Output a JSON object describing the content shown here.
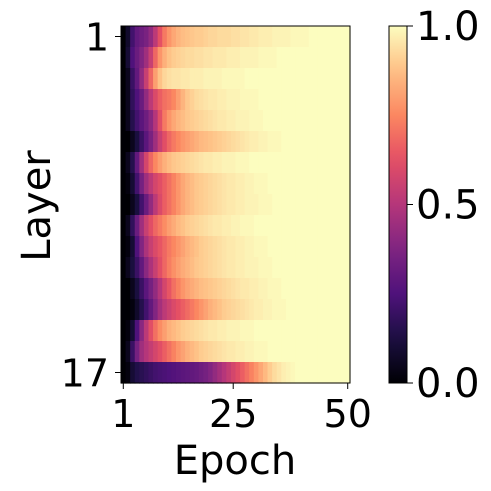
{
  "chart_data": {
    "type": "heatmap",
    "title": "",
    "xlabel": "Epoch",
    "ylabel": "Layer",
    "x_range": [
      1,
      50
    ],
    "y_range": [
      1,
      17
    ],
    "x_ticks": [
      "1",
      "25",
      "50"
    ],
    "y_ticks": [
      "1",
      "17"
    ],
    "colormap": "magma",
    "colorbar": {
      "range": [
        0.0,
        1.0
      ],
      "ticks": [
        "0.0",
        "0.5",
        "1.0"
      ]
    },
    "rows": [
      {
        "layer": 1,
        "values": [
          0.0,
          0.08,
          0.22,
          0.3,
          0.33,
          0.36,
          0.42,
          0.52,
          0.63,
          0.72,
          0.78,
          0.82,
          0.85,
          0.87,
          0.88,
          0.89,
          0.9,
          0.9,
          0.91,
          0.92,
          0.92,
          0.93,
          0.93,
          0.93,
          0.94,
          0.94,
          0.95,
          0.95,
          0.96,
          0.96,
          0.97,
          0.97,
          0.97,
          0.98,
          0.98,
          0.98,
          0.98,
          0.99,
          0.99,
          0.99,
          0.99,
          1.0,
          1.0,
          1.0,
          1.0,
          1.0,
          1.0,
          1.0,
          1.0,
          1.0
        ]
      },
      {
        "layer": 2,
        "values": [
          0.0,
          0.1,
          0.25,
          0.32,
          0.38,
          0.45,
          0.55,
          0.68,
          0.78,
          0.84,
          0.88,
          0.9,
          0.91,
          0.92,
          0.93,
          0.93,
          0.94,
          0.94,
          0.95,
          0.95,
          0.96,
          0.96,
          0.96,
          0.97,
          0.97,
          0.97,
          0.98,
          0.98,
          0.98,
          0.98,
          0.99,
          0.99,
          0.99,
          0.99,
          1.0,
          1.0,
          1.0,
          1.0,
          1.0,
          1.0,
          1.0,
          1.0,
          1.0,
          1.0,
          1.0,
          1.0,
          1.0,
          1.0,
          1.0,
          1.0
        ]
      },
      {
        "layer": 3,
        "values": [
          0.0,
          0.05,
          0.2,
          0.3,
          0.42,
          0.55,
          0.68,
          0.8,
          0.88,
          0.92,
          0.94,
          0.95,
          0.95,
          0.96,
          0.96,
          0.97,
          0.97,
          0.97,
          0.98,
          0.98,
          0.98,
          0.98,
          0.99,
          0.99,
          0.99,
          0.99,
          0.99,
          1.0,
          1.0,
          1.0,
          1.0,
          1.0,
          1.0,
          1.0,
          1.0,
          1.0,
          1.0,
          1.0,
          1.0,
          1.0,
          1.0,
          1.0,
          1.0,
          1.0,
          1.0,
          1.0,
          1.0,
          1.0,
          1.0,
          1.0
        ]
      },
      {
        "layer": 4,
        "values": [
          0.0,
          0.05,
          0.18,
          0.25,
          0.32,
          0.42,
          0.52,
          0.6,
          0.66,
          0.7,
          0.72,
          0.75,
          0.8,
          0.85,
          0.89,
          0.91,
          0.93,
          0.94,
          0.95,
          0.96,
          0.96,
          0.97,
          0.97,
          0.98,
          0.98,
          0.98,
          0.99,
          0.99,
          0.99,
          0.99,
          1.0,
          1.0,
          1.0,
          1.0,
          1.0,
          1.0,
          1.0,
          1.0,
          1.0,
          1.0,
          1.0,
          1.0,
          1.0,
          1.0,
          1.0,
          1.0,
          1.0,
          1.0,
          1.0,
          1.0
        ]
      },
      {
        "layer": 5,
        "values": [
          0.0,
          0.05,
          0.15,
          0.22,
          0.28,
          0.33,
          0.4,
          0.5,
          0.62,
          0.72,
          0.78,
          0.82,
          0.85,
          0.87,
          0.89,
          0.9,
          0.91,
          0.92,
          0.93,
          0.94,
          0.95,
          0.96,
          0.96,
          0.97,
          0.97,
          0.98,
          0.98,
          0.98,
          0.99,
          0.99,
          0.99,
          1.0,
          1.0,
          1.0,
          1.0,
          1.0,
          1.0,
          1.0,
          1.0,
          1.0,
          1.0,
          1.0,
          1.0,
          1.0,
          1.0,
          1.0,
          1.0,
          1.0,
          1.0,
          1.0
        ]
      },
      {
        "layer": 6,
        "values": [
          0.0,
          0.0,
          0.05,
          0.12,
          0.2,
          0.28,
          0.36,
          0.45,
          0.55,
          0.62,
          0.68,
          0.72,
          0.75,
          0.78,
          0.8,
          0.82,
          0.84,
          0.86,
          0.87,
          0.88,
          0.89,
          0.9,
          0.91,
          0.92,
          0.93,
          0.94,
          0.95,
          0.96,
          0.97,
          0.97,
          0.98,
          0.98,
          0.99,
          0.99,
          0.99,
          1.0,
          1.0,
          1.0,
          1.0,
          1.0,
          1.0,
          1.0,
          1.0,
          1.0,
          1.0,
          1.0,
          1.0,
          1.0,
          1.0,
          1.0
        ]
      },
      {
        "layer": 7,
        "values": [
          0.0,
          0.05,
          0.15,
          0.3,
          0.45,
          0.58,
          0.68,
          0.75,
          0.8,
          0.84,
          0.87,
          0.89,
          0.9,
          0.91,
          0.92,
          0.93,
          0.94,
          0.95,
          0.96,
          0.96,
          0.97,
          0.97,
          0.98,
          0.98,
          0.98,
          0.99,
          0.99,
          0.99,
          1.0,
          1.0,
          1.0,
          1.0,
          1.0,
          1.0,
          1.0,
          1.0,
          1.0,
          1.0,
          1.0,
          1.0,
          1.0,
          1.0,
          1.0,
          1.0,
          1.0,
          1.0,
          1.0,
          1.0,
          1.0,
          1.0
        ]
      },
      {
        "layer": 8,
        "values": [
          0.0,
          0.02,
          0.1,
          0.22,
          0.35,
          0.45,
          0.52,
          0.58,
          0.62,
          0.66,
          0.7,
          0.74,
          0.78,
          0.82,
          0.85,
          0.87,
          0.89,
          0.9,
          0.91,
          0.92,
          0.93,
          0.94,
          0.95,
          0.96,
          0.96,
          0.97,
          0.97,
          0.98,
          0.98,
          0.99,
          0.99,
          0.99,
          1.0,
          1.0,
          1.0,
          1.0,
          1.0,
          1.0,
          1.0,
          1.0,
          1.0,
          1.0,
          1.0,
          1.0,
          1.0,
          1.0,
          1.0,
          1.0,
          1.0,
          1.0
        ]
      },
      {
        "layer": 9,
        "values": [
          0.0,
          0.0,
          0.05,
          0.12,
          0.22,
          0.32,
          0.42,
          0.52,
          0.6,
          0.66,
          0.7,
          0.74,
          0.78,
          0.82,
          0.85,
          0.87,
          0.89,
          0.9,
          0.91,
          0.92,
          0.93,
          0.94,
          0.95,
          0.96,
          0.96,
          0.97,
          0.97,
          0.98,
          0.98,
          0.98,
          0.99,
          0.99,
          0.99,
          1.0,
          1.0,
          1.0,
          1.0,
          1.0,
          1.0,
          1.0,
          1.0,
          1.0,
          1.0,
          1.0,
          1.0,
          1.0,
          1.0,
          1.0,
          1.0,
          1.0
        ]
      },
      {
        "layer": 10,
        "values": [
          0.0,
          0.05,
          0.18,
          0.32,
          0.45,
          0.55,
          0.62,
          0.68,
          0.72,
          0.76,
          0.8,
          0.83,
          0.86,
          0.88,
          0.9,
          0.91,
          0.92,
          0.93,
          0.94,
          0.95,
          0.96,
          0.96,
          0.97,
          0.97,
          0.98,
          0.98,
          0.99,
          0.99,
          0.99,
          1.0,
          1.0,
          1.0,
          1.0,
          1.0,
          1.0,
          1.0,
          1.0,
          1.0,
          1.0,
          1.0,
          1.0,
          1.0,
          1.0,
          1.0,
          1.0,
          1.0,
          1.0,
          1.0,
          1.0,
          1.0
        ]
      },
      {
        "layer": 11,
        "values": [
          0.0,
          0.02,
          0.1,
          0.25,
          0.38,
          0.48,
          0.55,
          0.6,
          0.64,
          0.68,
          0.72,
          0.75,
          0.78,
          0.81,
          0.84,
          0.86,
          0.88,
          0.9,
          0.91,
          0.92,
          0.93,
          0.94,
          0.95,
          0.96,
          0.96,
          0.97,
          0.97,
          0.98,
          0.98,
          0.99,
          0.99,
          0.99,
          1.0,
          1.0,
          1.0,
          1.0,
          1.0,
          1.0,
          1.0,
          1.0,
          1.0,
          1.0,
          1.0,
          1.0,
          1.0,
          1.0,
          1.0,
          1.0,
          1.0,
          1.0
        ]
      },
      {
        "layer": 12,
        "values": [
          0.0,
          0.05,
          0.12,
          0.2,
          0.3,
          0.4,
          0.48,
          0.55,
          0.62,
          0.68,
          0.73,
          0.77,
          0.8,
          0.83,
          0.85,
          0.87,
          0.89,
          0.9,
          0.91,
          0.92,
          0.93,
          0.94,
          0.95,
          0.96,
          0.96,
          0.97,
          0.97,
          0.98,
          0.98,
          0.98,
          0.99,
          0.99,
          0.99,
          1.0,
          1.0,
          1.0,
          1.0,
          1.0,
          1.0,
          1.0,
          1.0,
          1.0,
          1.0,
          1.0,
          1.0,
          1.0,
          1.0,
          1.0,
          1.0,
          1.0
        ]
      },
      {
        "layer": 13,
        "values": [
          0.0,
          0.0,
          0.05,
          0.12,
          0.2,
          0.28,
          0.35,
          0.42,
          0.5,
          0.58,
          0.64,
          0.7,
          0.74,
          0.78,
          0.81,
          0.83,
          0.85,
          0.87,
          0.88,
          0.89,
          0.9,
          0.91,
          0.92,
          0.93,
          0.94,
          0.95,
          0.96,
          0.96,
          0.97,
          0.97,
          0.98,
          0.98,
          0.99,
          0.99,
          0.99,
          1.0,
          1.0,
          1.0,
          1.0,
          1.0,
          1.0,
          1.0,
          1.0,
          1.0,
          1.0,
          1.0,
          1.0,
          1.0,
          1.0,
          1.0
        ]
      },
      {
        "layer": 14,
        "values": [
          0.0,
          0.0,
          0.02,
          0.08,
          0.15,
          0.22,
          0.3,
          0.38,
          0.46,
          0.52,
          0.56,
          0.6,
          0.63,
          0.66,
          0.69,
          0.72,
          0.75,
          0.78,
          0.81,
          0.84,
          0.86,
          0.88,
          0.9,
          0.91,
          0.92,
          0.93,
          0.94,
          0.95,
          0.96,
          0.97,
          0.97,
          0.98,
          0.98,
          0.99,
          0.99,
          0.99,
          1.0,
          1.0,
          1.0,
          1.0,
          1.0,
          1.0,
          1.0,
          1.0,
          1.0,
          1.0,
          1.0,
          1.0,
          1.0,
          1.0
        ]
      },
      {
        "layer": 15,
        "values": [
          0.0,
          0.02,
          0.1,
          0.25,
          0.4,
          0.52,
          0.62,
          0.7,
          0.76,
          0.8,
          0.84,
          0.86,
          0.88,
          0.9,
          0.91,
          0.92,
          0.93,
          0.94,
          0.95,
          0.96,
          0.96,
          0.97,
          0.97,
          0.98,
          0.98,
          0.98,
          0.99,
          0.99,
          0.99,
          1.0,
          1.0,
          1.0,
          1.0,
          1.0,
          1.0,
          1.0,
          1.0,
          1.0,
          1.0,
          1.0,
          1.0,
          1.0,
          1.0,
          1.0,
          1.0,
          1.0,
          1.0,
          1.0,
          1.0,
          1.0
        ]
      },
      {
        "layer": 16,
        "values": [
          0.0,
          0.05,
          0.2,
          0.35,
          0.45,
          0.5,
          0.54,
          0.58,
          0.62,
          0.66,
          0.7,
          0.74,
          0.78,
          0.81,
          0.84,
          0.86,
          0.88,
          0.9,
          0.91,
          0.92,
          0.93,
          0.94,
          0.95,
          0.96,
          0.96,
          0.97,
          0.97,
          0.98,
          0.98,
          0.99,
          0.99,
          0.99,
          1.0,
          1.0,
          1.0,
          1.0,
          1.0,
          1.0,
          1.0,
          1.0,
          1.0,
          1.0,
          1.0,
          1.0,
          1.0,
          1.0,
          1.0,
          1.0,
          1.0,
          1.0
        ]
      },
      {
        "layer": 17,
        "values": [
          0.0,
          0.02,
          0.1,
          0.14,
          0.16,
          0.18,
          0.2,
          0.22,
          0.23,
          0.24,
          0.25,
          0.26,
          0.27,
          0.28,
          0.29,
          0.3,
          0.31,
          0.33,
          0.35,
          0.38,
          0.42,
          0.46,
          0.5,
          0.54,
          0.58,
          0.62,
          0.66,
          0.7,
          0.74,
          0.78,
          0.82,
          0.86,
          0.9,
          0.93,
          0.95,
          0.97,
          0.98,
          0.99,
          1.0,
          1.0,
          1.0,
          1.0,
          1.0,
          1.0,
          1.0,
          1.0,
          1.0,
          1.0,
          1.0,
          1.0
        ]
      }
    ]
  }
}
